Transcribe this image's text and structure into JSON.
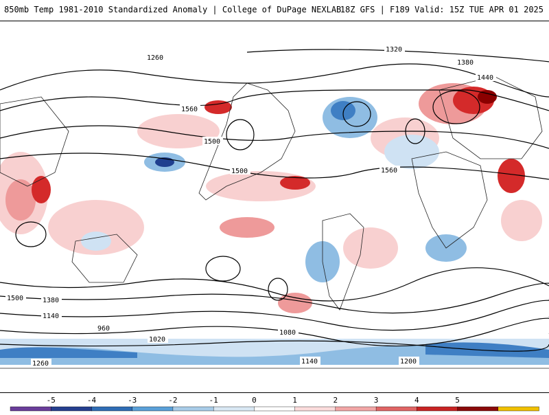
{
  "header": {
    "title_left": "850mb Temp 1981-2010 Standardized Anomaly | College of DuPage NEXLAB",
    "title_right": "18Z GFS | F189 Valid: 15Z TUE APR 01 2025"
  },
  "contour_labels": [
    "1260",
    "1320",
    "1380",
    "1440",
    "1500",
    "1560",
    "1200",
    "1140",
    "1080",
    "1020",
    "960"
  ],
  "colorbar": {
    "ticks": [
      "-5",
      "-4",
      "-3",
      "-2",
      "-1",
      "0",
      "1",
      "2",
      "3",
      "4",
      "5"
    ],
    "colors": [
      "#6a3d9a",
      "#253f8f",
      "#2f6db5",
      "#5aa0d8",
      "#a8cce8",
      "#d9e8f4",
      "#ffffff",
      "#fbdcdc",
      "#f2a6a6",
      "#e06565",
      "#c82424",
      "#8b0a0a",
      "#f0c000"
    ]
  },
  "colors": {
    "warm_light": "#f8d0d0",
    "warm_mid": "#ee9a9a",
    "warm_strong": "#d42a2a",
    "warm_extreme": "#8b0000",
    "cool_light": "#cfe2f3",
    "cool_mid": "#8fbde3",
    "cool_strong": "#3f7fc4",
    "cool_extreme": "#1f3f8f",
    "contour": "#000000",
    "coastline": "#222222"
  }
}
